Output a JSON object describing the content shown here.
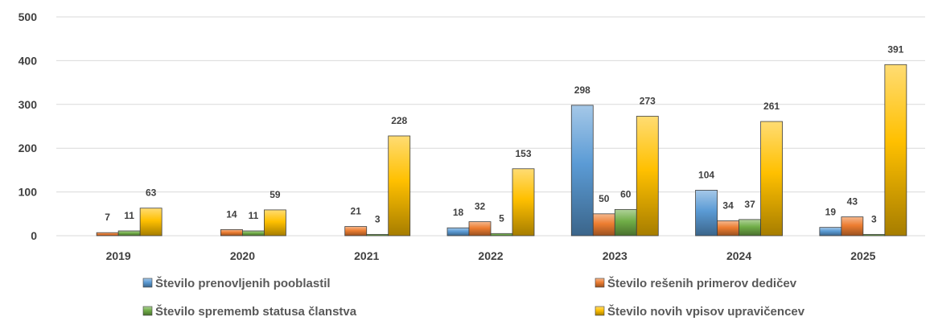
{
  "chart_data": {
    "type": "bar",
    "categories": [
      "2019",
      "2020",
      "2021",
      "2022",
      "2023",
      "2024",
      "2025"
    ],
    "series": [
      {
        "name": "Število prenovljenih pooblastil",
        "values": [
          null,
          null,
          null,
          18,
          298,
          104,
          19
        ],
        "color": "#5B9BD5"
      },
      {
        "name": "Število rešenih primerov dedičev",
        "values": [
          7,
          14,
          21,
          32,
          50,
          34,
          43
        ],
        "color": "#ED7D31"
      },
      {
        "name": "Število sprememb statusa članstva",
        "values": [
          11,
          11,
          3,
          5,
          60,
          37,
          3
        ],
        "color": "#70AD47"
      },
      {
        "name": "Število novih vpisov upravičencev",
        "values": [
          63,
          59,
          228,
          153,
          273,
          261,
          391
        ],
        "color": "#FFC000"
      }
    ],
    "ylim": [
      0,
      500
    ],
    "yticks": [
      0,
      100,
      200,
      300,
      400,
      500
    ],
    "grid": true,
    "legend_position": "bottom"
  }
}
